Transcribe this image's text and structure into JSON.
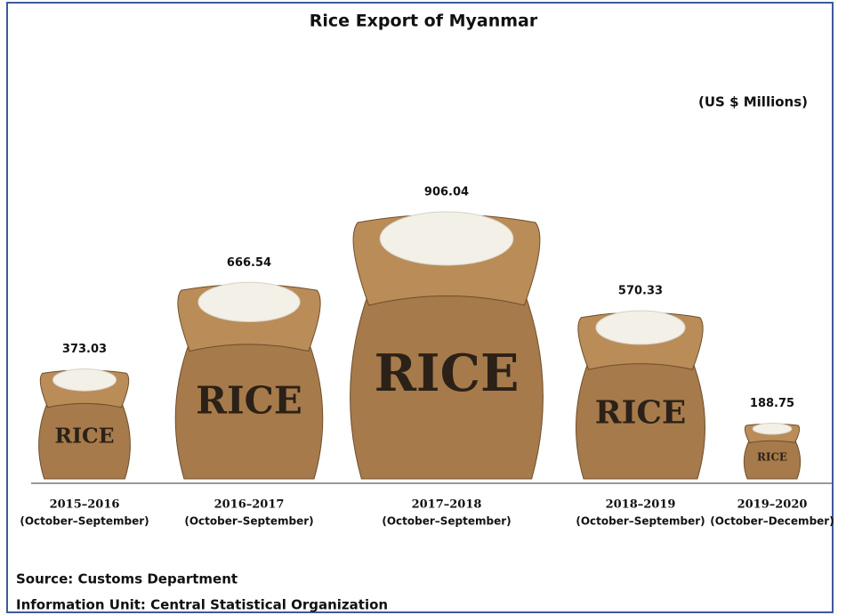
{
  "chart_data": {
    "type": "pictogram",
    "title": "Rice Export of Myanmar",
    "unit": "(US $ Millions)",
    "categories": [
      "2015–2016",
      "2016–2017",
      "2017–2018",
      "2018–2019",
      "2019–2020"
    ],
    "periods": [
      "(October–September)",
      "(October–September)",
      "(October–September)",
      "(October–September)",
      "(October–December)"
    ],
    "values": [
      373.03,
      666.54,
      906.04,
      570.33,
      188.75
    ],
    "sack_label": "RICE",
    "color": "#a67a4a",
    "source": "Source: Customs Department",
    "info": "Information Unit:  Central Statistical Organization"
  }
}
